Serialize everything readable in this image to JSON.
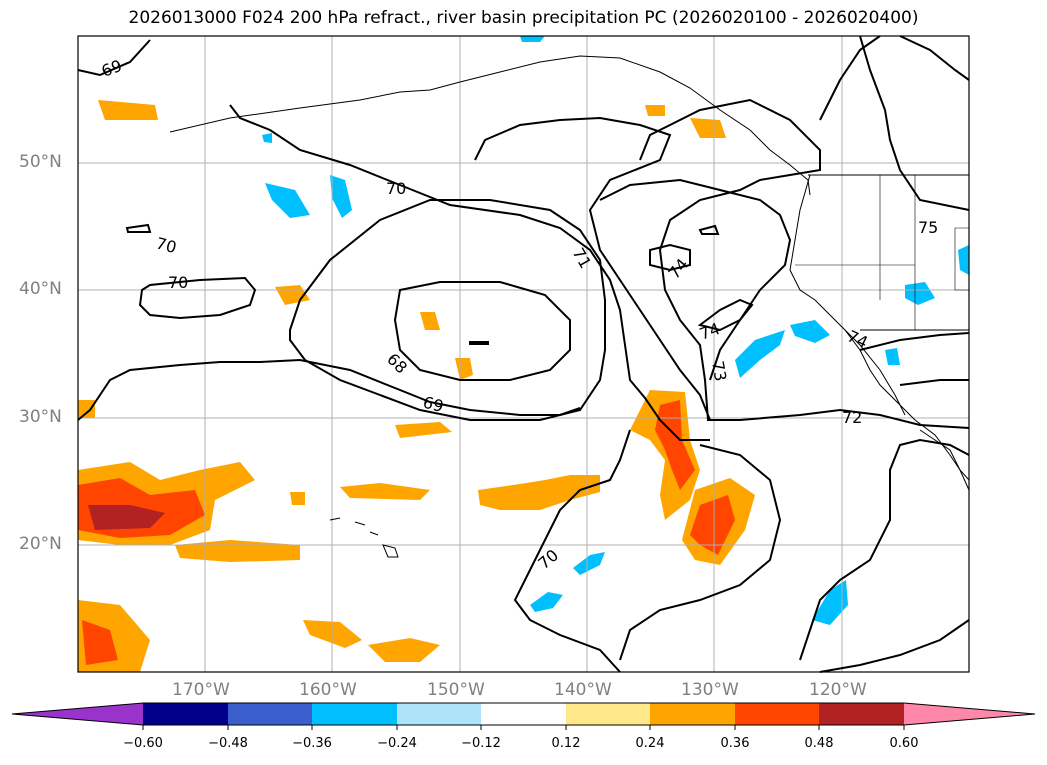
{
  "title": "2026013000 F024 200 hPa refract., river basin precipitation PC (2026020100 - 2026020400)",
  "map": {
    "lon_range": [
      -180,
      -110
    ],
    "lat_range": [
      10,
      60
    ],
    "lat_labels": [
      "50°N",
      "40°N",
      "30°N",
      "20°N"
    ],
    "lat_values": [
      50,
      40,
      30,
      20
    ],
    "lon_labels": [
      "170°W",
      "160°W",
      "150°W",
      "140°W",
      "130°W",
      "120°W"
    ],
    "lon_values": [
      -170,
      -160,
      -150,
      -140,
      -130,
      -120
    ],
    "grid": true,
    "contour_labels": [
      "69",
      "70",
      "70",
      "70",
      "68",
      "69",
      "71",
      "74",
      "74",
      "73",
      "74",
      "75",
      "72",
      "70"
    ]
  },
  "colorbar": {
    "ticks": [
      "−0.60",
      "−0.48",
      "−0.36",
      "−0.24",
      "−0.12",
      "0.12",
      "0.24",
      "0.36",
      "0.48",
      "0.60"
    ],
    "colors": [
      "#9933cc",
      "#00008b",
      "#3a5fcd",
      "#00bfff",
      "#ade3f8",
      "#ffffff",
      "#ffe88a",
      "#ffa500",
      "#ff4500",
      "#b22222",
      "#ff88aa"
    ]
  }
}
